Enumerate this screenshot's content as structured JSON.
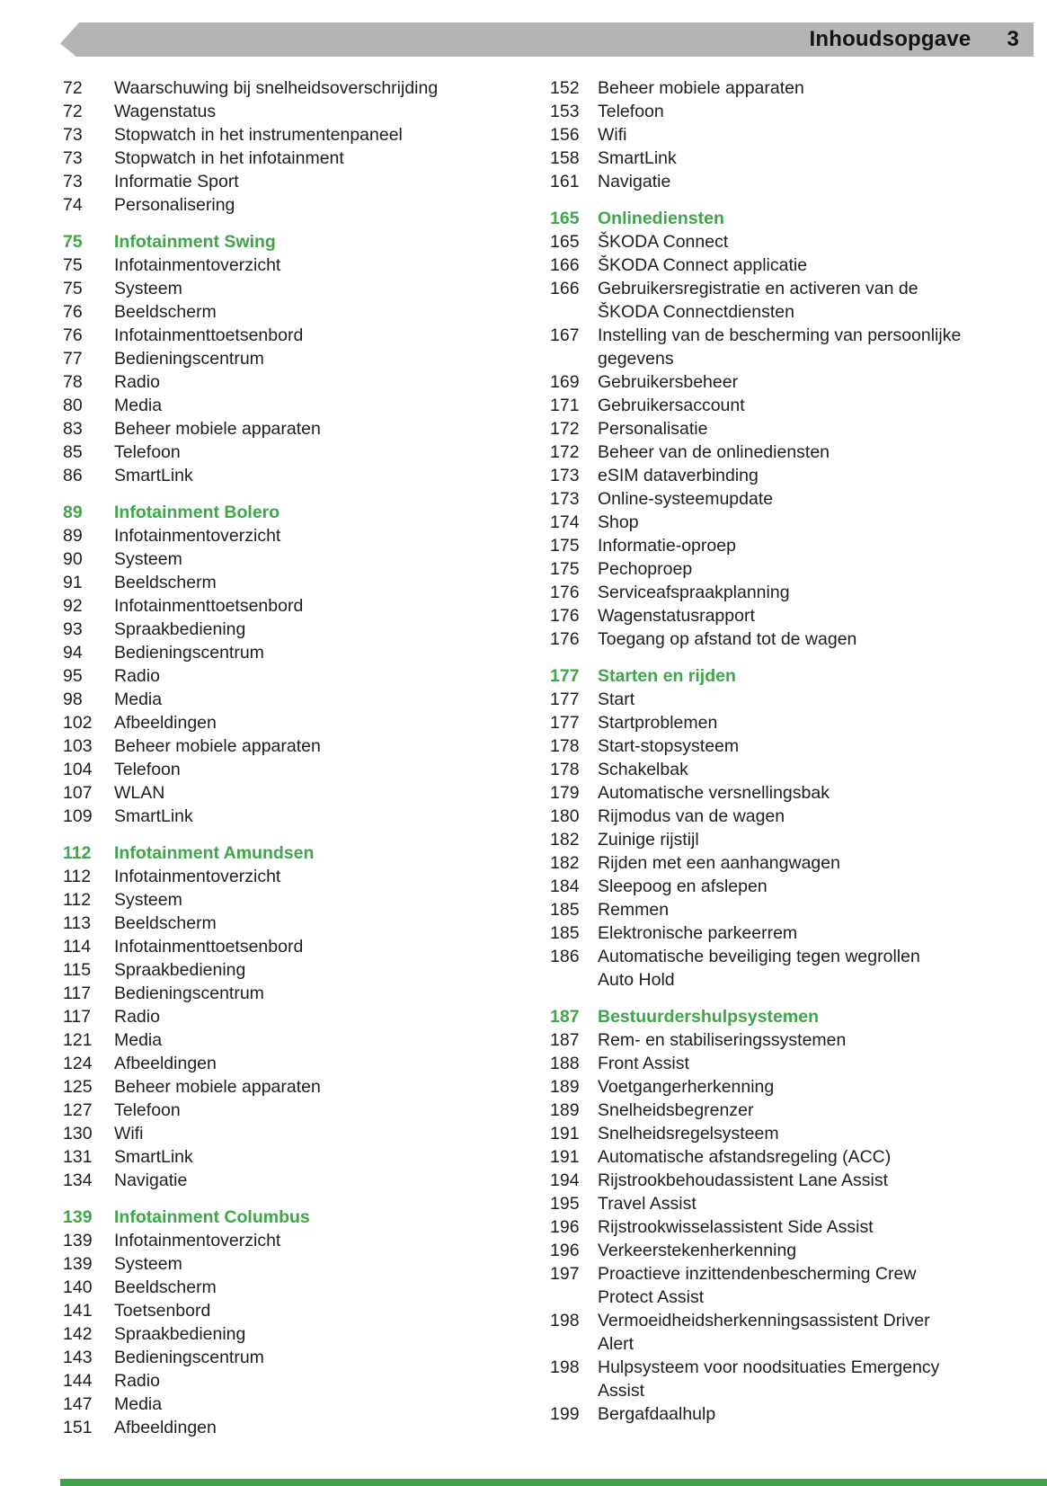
{
  "header": {
    "title": "Inhoudsopgave",
    "page_number": "3"
  },
  "colors": {
    "accent_green": "#3fa54a",
    "header_bar_gray": "#b4b4b4",
    "text": "#1e1e1c"
  },
  "columns": {
    "left": [
      {
        "page": "72",
        "label": "Waarschuwing bij snelheidsoverschrijding"
      },
      {
        "page": "72",
        "label": "Wagenstatus"
      },
      {
        "page": "73",
        "label": "Stopwatch in het instrumentenpaneel"
      },
      {
        "page": "73",
        "label": "Stopwatch in het infotainment"
      },
      {
        "page": "73",
        "label": "Informatie Sport"
      },
      {
        "page": "74",
        "label": "Personalisering"
      },
      {
        "page": "75",
        "label": "Infotainment Swing",
        "section": true
      },
      {
        "page": "75",
        "label": "Infotainmentoverzicht"
      },
      {
        "page": "75",
        "label": "Systeem"
      },
      {
        "page": "76",
        "label": "Beeldscherm"
      },
      {
        "page": "76",
        "label": "Infotainmenttoetsenbord"
      },
      {
        "page": "77",
        "label": "Bedieningscentrum"
      },
      {
        "page": "78",
        "label": "Radio"
      },
      {
        "page": "80",
        "label": "Media"
      },
      {
        "page": "83",
        "label": "Beheer mobiele apparaten"
      },
      {
        "page": "85",
        "label": "Telefoon"
      },
      {
        "page": "86",
        "label": "SmartLink"
      },
      {
        "page": "89",
        "label": "Infotainment Bolero",
        "section": true
      },
      {
        "page": "89",
        "label": "Infotainmentoverzicht"
      },
      {
        "page": "90",
        "label": "Systeem"
      },
      {
        "page": "91",
        "label": "Beeldscherm"
      },
      {
        "page": "92",
        "label": "Infotainmenttoetsenbord"
      },
      {
        "page": "93",
        "label": "Spraakbediening"
      },
      {
        "page": "94",
        "label": "Bedieningscentrum"
      },
      {
        "page": "95",
        "label": "Radio"
      },
      {
        "page": "98",
        "label": "Media"
      },
      {
        "page": "102",
        "label": "Afbeeldingen"
      },
      {
        "page": "103",
        "label": "Beheer mobiele apparaten"
      },
      {
        "page": "104",
        "label": "Telefoon"
      },
      {
        "page": "107",
        "label": "WLAN"
      },
      {
        "page": "109",
        "label": "SmartLink"
      },
      {
        "page": "112",
        "label": "Infotainment Amundsen",
        "section": true
      },
      {
        "page": "112",
        "label": "Infotainmentoverzicht"
      },
      {
        "page": "112",
        "label": "Systeem"
      },
      {
        "page": "113",
        "label": "Beeldscherm"
      },
      {
        "page": "114",
        "label": "Infotainmenttoetsenbord"
      },
      {
        "page": "115",
        "label": "Spraakbediening"
      },
      {
        "page": "117",
        "label": "Bedieningscentrum"
      },
      {
        "page": "117",
        "label": "Radio"
      },
      {
        "page": "121",
        "label": "Media"
      },
      {
        "page": "124",
        "label": "Afbeeldingen"
      },
      {
        "page": "125",
        "label": "Beheer mobiele apparaten"
      },
      {
        "page": "127",
        "label": "Telefoon"
      },
      {
        "page": "130",
        "label": "Wifi"
      },
      {
        "page": "131",
        "label": "SmartLink"
      },
      {
        "page": "134",
        "label": "Navigatie"
      },
      {
        "page": "139",
        "label": "Infotainment Columbus",
        "section": true
      },
      {
        "page": "139",
        "label": "Infotainmentoverzicht"
      },
      {
        "page": "139",
        "label": "Systeem"
      },
      {
        "page": "140",
        "label": "Beeldscherm"
      },
      {
        "page": "141",
        "label": "Toetsenbord"
      },
      {
        "page": "142",
        "label": "Spraakbediening"
      },
      {
        "page": "143",
        "label": "Bedieningscentrum"
      },
      {
        "page": "144",
        "label": "Radio"
      },
      {
        "page": "147",
        "label": "Media"
      },
      {
        "page": "151",
        "label": "Afbeeldingen"
      }
    ],
    "right": [
      {
        "page": "152",
        "label": "Beheer mobiele apparaten"
      },
      {
        "page": "153",
        "label": "Telefoon"
      },
      {
        "page": "156",
        "label": "Wifi"
      },
      {
        "page": "158",
        "label": "SmartLink"
      },
      {
        "page": "161",
        "label": "Navigatie"
      },
      {
        "page": "165",
        "label": "Onlinediensten",
        "section": true
      },
      {
        "page": "165",
        "label": "ŠKODA Connect"
      },
      {
        "page": "166",
        "label": "ŠKODA Connect applicatie"
      },
      {
        "page": "166",
        "label": "Gebruikersregistratie en activeren van de\nŠKODA Connectdiensten"
      },
      {
        "page": "167",
        "label": "Instelling van de bescherming van persoonlijke\ngegevens"
      },
      {
        "page": "169",
        "label": "Gebruikersbeheer"
      },
      {
        "page": "171",
        "label": "Gebruikersaccount"
      },
      {
        "page": "172",
        "label": "Personalisatie"
      },
      {
        "page": "172",
        "label": "Beheer van de onlinediensten"
      },
      {
        "page": "173",
        "label": "eSIM dataverbinding"
      },
      {
        "page": "173",
        "label": "Online-systeemupdate"
      },
      {
        "page": "174",
        "label": "Shop"
      },
      {
        "page": "175",
        "label": "Informatie-oproep"
      },
      {
        "page": "175",
        "label": "Pechoproep"
      },
      {
        "page": "176",
        "label": "Serviceafspraakplanning"
      },
      {
        "page": "176",
        "label": "Wagenstatusrapport"
      },
      {
        "page": "176",
        "label": "Toegang op afstand tot de wagen"
      },
      {
        "page": "177",
        "label": "Starten en rijden",
        "section": true
      },
      {
        "page": "177",
        "label": "Start"
      },
      {
        "page": "177",
        "label": "Startproblemen"
      },
      {
        "page": "178",
        "label": "Start-stopsysteem"
      },
      {
        "page": "178",
        "label": "Schakelbak"
      },
      {
        "page": "179",
        "label": "Automatische versnellingsbak"
      },
      {
        "page": "180",
        "label": "Rijmodus van de wagen"
      },
      {
        "page": "182",
        "label": "Zuinige rijstijl"
      },
      {
        "page": "182",
        "label": "Rijden met een aanhangwagen"
      },
      {
        "page": "184",
        "label": "Sleepoog en afslepen"
      },
      {
        "page": "185",
        "label": "Remmen"
      },
      {
        "page": "185",
        "label": "Elektronische parkeerrem"
      },
      {
        "page": "186",
        "label": "Automatische beveiliging tegen wegrollen\nAuto Hold"
      },
      {
        "page": "187",
        "label": "Bestuurdershulpsystemen",
        "section": true
      },
      {
        "page": "187",
        "label": "Rem- en stabiliseringssystemen"
      },
      {
        "page": "188",
        "label": "Front Assist"
      },
      {
        "page": "189",
        "label": "Voetgangerherkenning"
      },
      {
        "page": "189",
        "label": "Snelheidsbegrenzer"
      },
      {
        "page": "191",
        "label": "Snelheidsregelsysteem"
      },
      {
        "page": "191",
        "label": "Automatische afstandsregeling (ACC)"
      },
      {
        "page": "194",
        "label": "Rijstrookbehoudassistent Lane Assist"
      },
      {
        "page": "195",
        "label": "Travel Assist"
      },
      {
        "page": "196",
        "label": "Rijstrookwisselassistent Side Assist"
      },
      {
        "page": "196",
        "label": "Verkeerstekenherkenning"
      },
      {
        "page": "197",
        "label": "Proactieve inzittendenbescherming Crew\nProtect Assist"
      },
      {
        "page": "198",
        "label": "Vermoeidheidsherkenningsassistent Driver\nAlert"
      },
      {
        "page": "198",
        "label": "Hulpsysteem voor noodsituaties Emergency\nAssist"
      },
      {
        "page": "199",
        "label": "Bergafdaalhulp"
      }
    ]
  }
}
